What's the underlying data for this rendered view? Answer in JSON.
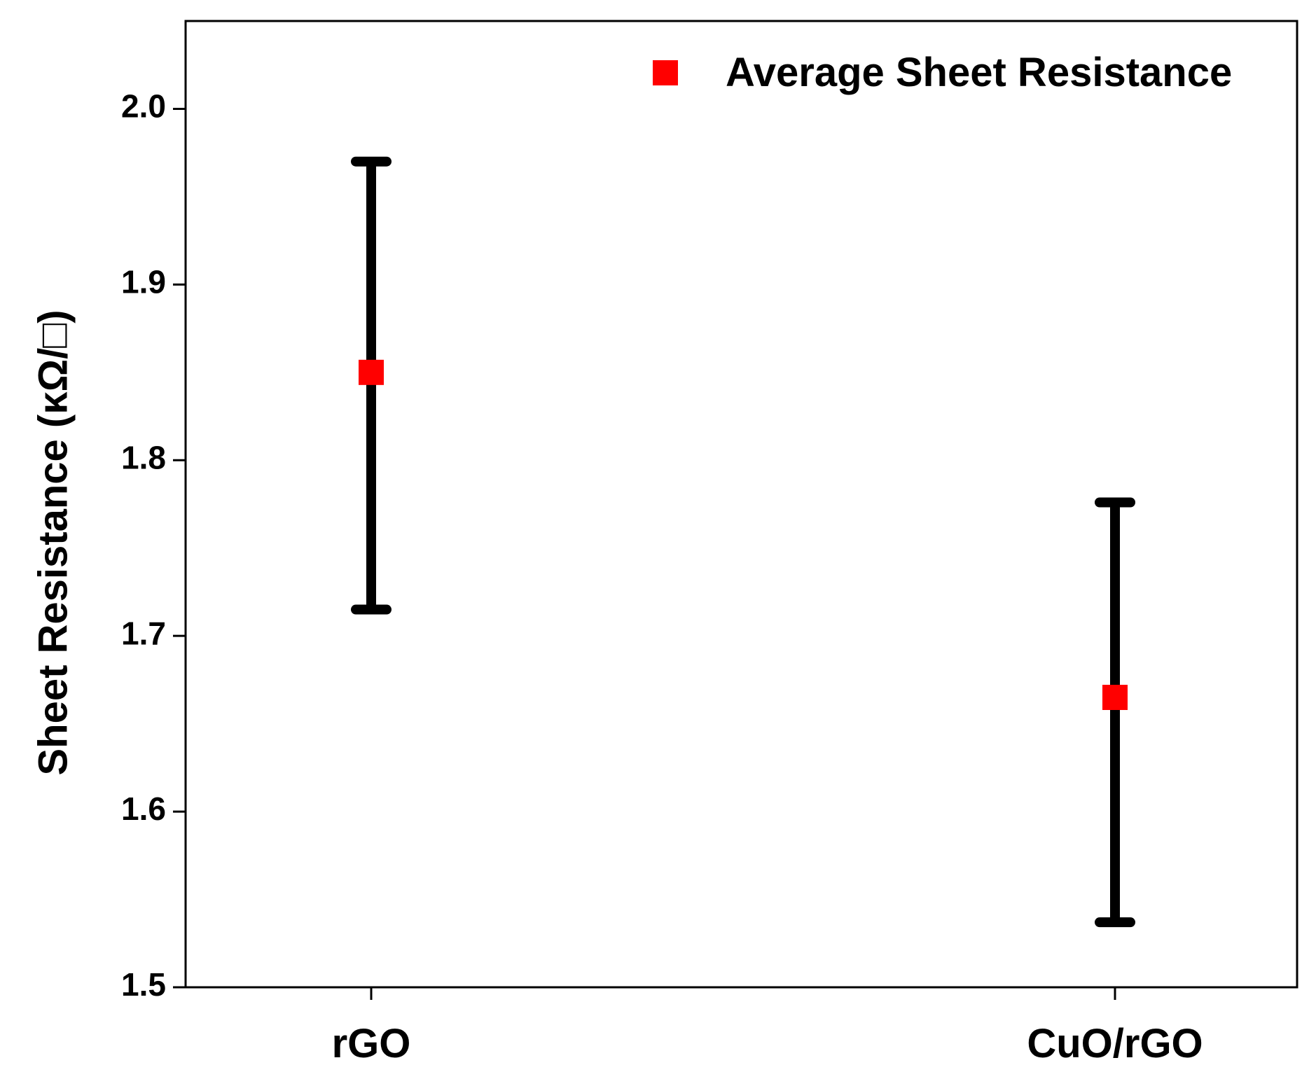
{
  "chart_data": {
    "type": "scatter",
    "title": "",
    "xlabel": "",
    "ylabel": "Sheet Resistance (κΩ/□)",
    "categories": [
      "rGO",
      "CuO/rGO"
    ],
    "series": [
      {
        "name": "Average Sheet Resistance",
        "marker": "square",
        "color": "#ff0000",
        "values": [
          1.85,
          1.665
        ],
        "error_low": [
          1.715,
          1.537
        ],
        "error_high": [
          1.97,
          1.776
        ]
      }
    ],
    "ylim": [
      1.5,
      2.05
    ],
    "yticks": [
      "1.5",
      "1.6",
      "1.7",
      "1.8",
      "1.9",
      "2.0"
    ],
    "ytick_values": [
      1.5,
      1.6,
      1.7,
      1.8,
      1.9,
      2.0
    ],
    "legend": {
      "label": "Average Sheet Resistance",
      "position": "top-right"
    },
    "grid": false
  }
}
